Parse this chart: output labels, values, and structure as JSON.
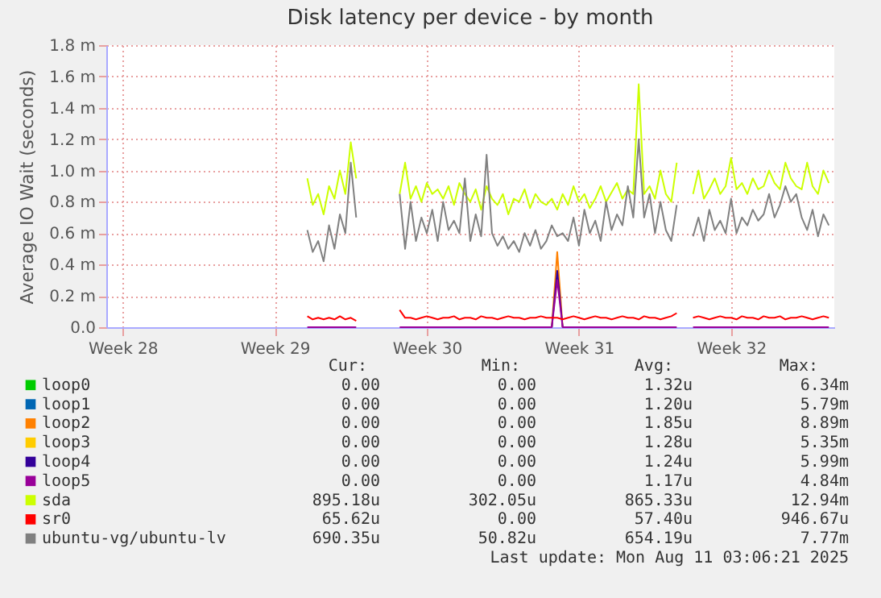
{
  "chart_data": {
    "type": "line",
    "title": "Disk latency per device - by month",
    "ylabel": "Average IO Wait (seconds)",
    "x": [
      "2025-07-17T06:00",
      "2025-07-17T12:00",
      "2025-07-17T18:00",
      "2025-07-18T00:00",
      "2025-07-18T06:00",
      "2025-07-18T12:00",
      "2025-07-18T18:00",
      "2025-07-19T00:00",
      "2025-07-19T06:00",
      "2025-07-19T12:00",
      "2025-07-20T12:00",
      "2025-07-21T12:00",
      "2025-07-21T18:00",
      "2025-07-22T00:00",
      "2025-07-22T06:00",
      "2025-07-22T12:00",
      "2025-07-22T18:00",
      "2025-07-23T00:00",
      "2025-07-23T06:00",
      "2025-07-23T12:00",
      "2025-07-23T18:00",
      "2025-07-24T00:00",
      "2025-07-24T06:00",
      "2025-07-24T12:00",
      "2025-07-24T18:00",
      "2025-07-25T00:00",
      "2025-07-25T06:00",
      "2025-07-25T12:00",
      "2025-07-25T18:00",
      "2025-07-26T00:00",
      "2025-07-26T06:00",
      "2025-07-26T12:00",
      "2025-07-26T18:00",
      "2025-07-27T00:00",
      "2025-07-27T06:00",
      "2025-07-27T12:00",
      "2025-07-27T18:00",
      "2025-07-28T00:00",
      "2025-07-28T06:00",
      "2025-07-28T12:00",
      "2025-07-28T18:00",
      "2025-07-29T00:00",
      "2025-07-29T06:00",
      "2025-07-29T12:00",
      "2025-07-29T18:00",
      "2025-07-30T00:00",
      "2025-07-30T06:00",
      "2025-07-30T12:00",
      "2025-07-30T18:00",
      "2025-07-31T00:00",
      "2025-07-31T06:00",
      "2025-07-31T12:00",
      "2025-07-31T18:00",
      "2025-08-01T00:00",
      "2025-08-01T06:00",
      "2025-08-01T12:00",
      "2025-08-01T18:00",
      "2025-08-02T00:00",
      "2025-08-02T06:00",
      "2025-08-02T12:00",
      "2025-08-02T18:00",
      "2025-08-03T00:00",
      "2025-08-03T06:00",
      "2025-08-03T18:00",
      "2025-08-04T00:00",
      "2025-08-04T06:00",
      "2025-08-04T12:00",
      "2025-08-04T18:00",
      "2025-08-05T00:00",
      "2025-08-05T06:00",
      "2025-08-05T12:00",
      "2025-08-05T18:00",
      "2025-08-06T00:00",
      "2025-08-06T06:00",
      "2025-08-06T12:00",
      "2025-08-06T18:00",
      "2025-08-07T00:00",
      "2025-08-07T06:00",
      "2025-08-07T12:00",
      "2025-08-07T18:00",
      "2025-08-08T00:00",
      "2025-08-08T06:00",
      "2025-08-08T12:00",
      "2025-08-08T18:00",
      "2025-08-09T00:00",
      "2025-08-09T06:00",
      "2025-08-09T12:00",
      "2025-08-09T18:00",
      "2025-08-10T00:00",
      "2025-08-10T06:00"
    ],
    "xlim": [
      "2025-07-08T00:00",
      "2025-08-10T12:00"
    ],
    "xticks": [
      {
        "value": "2025-07-08T18:00",
        "label": "Week 28"
      },
      {
        "value": "2025-07-15T18:00",
        "label": "Week 29"
      },
      {
        "value": "2025-07-22T18:00",
        "label": "Week 30"
      },
      {
        "value": "2025-07-29T18:00",
        "label": "Week 31"
      },
      {
        "value": "2025-08-05T18:00",
        "label": "Week 32"
      }
    ],
    "ylim": [
      0,
      1.8
    ],
    "yticks": [
      {
        "value": 0,
        "label": "0.0"
      },
      {
        "value": 0.2,
        "label": "0.2 m"
      },
      {
        "value": 0.4,
        "label": "0.4 m"
      },
      {
        "value": 0.6,
        "label": "0.6 m"
      },
      {
        "value": 0.8,
        "label": "0.8 m"
      },
      {
        "value": 1.0,
        "label": "1.0 m"
      },
      {
        "value": 1.2,
        "label": "1.2 m"
      },
      {
        "value": 1.4,
        "label": "1.4 m"
      },
      {
        "value": 1.6,
        "label": "1.6 m"
      },
      {
        "value": 1.8,
        "label": "1.8 m"
      }
    ],
    "grid": true,
    "legend": "bottom",
    "series": [
      {
        "name": "loop0",
        "color": "#00cc00",
        "values": [
          null,
          null,
          null,
          null,
          null,
          null,
          null,
          null,
          null,
          null,
          null,
          null,
          null,
          null,
          null,
          null,
          null,
          null,
          null,
          null,
          null,
          null,
          null,
          null,
          null,
          null,
          null,
          null,
          null,
          null,
          null,
          null,
          null,
          null,
          null,
          null,
          null,
          null,
          null,
          null,
          null,
          null,
          null,
          null,
          null,
          null,
          null,
          null,
          null,
          null,
          null,
          null,
          null,
          null,
          null,
          null,
          null,
          null,
          null,
          null,
          null,
          null,
          null,
          null,
          null,
          null,
          null,
          null,
          null,
          null,
          null,
          null,
          null,
          null,
          null,
          null,
          null,
          null,
          null,
          null,
          null,
          null,
          null,
          null,
          null,
          null,
          null,
          null,
          null,
          null
        ]
      },
      {
        "name": "loop1",
        "color": "#0066b3",
        "values": [
          null,
          null,
          null,
          null,
          null,
          null,
          null,
          null,
          null,
          null,
          null,
          null,
          null,
          null,
          null,
          null,
          null,
          null,
          null,
          null,
          null,
          null,
          null,
          null,
          null,
          null,
          null,
          null,
          null,
          null,
          null,
          null,
          null,
          null,
          null,
          null,
          null,
          null,
          null,
          null,
          null,
          null,
          null,
          null,
          null,
          null,
          null,
          null,
          null,
          null,
          null,
          null,
          null,
          null,
          null,
          null,
          null,
          null,
          null,
          null,
          null,
          null,
          null,
          null,
          null,
          null,
          null,
          null,
          null,
          null,
          null,
          null,
          null,
          null,
          null,
          null,
          null,
          null,
          null,
          null,
          null,
          null,
          null,
          null,
          null,
          null,
          null,
          null,
          null,
          null
        ]
      },
      {
        "name": "loop2",
        "color": "#ff8000",
        "values": [
          null,
          null,
          null,
          null,
          null,
          null,
          null,
          null,
          null,
          null,
          null,
          null,
          null,
          null,
          null,
          null,
          null,
          null,
          null,
          null,
          null,
          null,
          null,
          null,
          null,
          null,
          null,
          null,
          null,
          null,
          null,
          null,
          null,
          null,
          null,
          null,
          null,
          null,
          null,
          0,
          0.48,
          0,
          null,
          null,
          null,
          null,
          null,
          null,
          null,
          null,
          null,
          null,
          null,
          null,
          null,
          null,
          null,
          null,
          null,
          null,
          null,
          null,
          null,
          null,
          null,
          null,
          null,
          null,
          null,
          null,
          null,
          null,
          null,
          null,
          null,
          null,
          null,
          null,
          null,
          null,
          null,
          null,
          null,
          null,
          null,
          null,
          null,
          null,
          null,
          null
        ]
      },
      {
        "name": "loop3",
        "color": "#ffcc00",
        "values": [
          null,
          null,
          null,
          null,
          null,
          null,
          null,
          null,
          null,
          null,
          null,
          null,
          null,
          null,
          null,
          null,
          null,
          null,
          null,
          null,
          null,
          null,
          null,
          null,
          null,
          null,
          null,
          null,
          null,
          null,
          null,
          null,
          null,
          null,
          null,
          null,
          null,
          null,
          null,
          null,
          null,
          null,
          null,
          null,
          null,
          null,
          null,
          null,
          null,
          null,
          null,
          null,
          null,
          null,
          null,
          null,
          null,
          null,
          null,
          null,
          null,
          null,
          null,
          null,
          null,
          null,
          null,
          null,
          null,
          null,
          null,
          null,
          null,
          null,
          null,
          null,
          null,
          null,
          null,
          null,
          null,
          null,
          null,
          null,
          null,
          null,
          null,
          null,
          null,
          null
        ]
      },
      {
        "name": "loop4",
        "color": "#330099",
        "values": [
          null,
          null,
          null,
          null,
          null,
          null,
          null,
          null,
          null,
          null,
          null,
          null,
          null,
          null,
          null,
          null,
          null,
          null,
          null,
          null,
          null,
          null,
          null,
          null,
          null,
          null,
          null,
          null,
          null,
          null,
          null,
          null,
          null,
          null,
          null,
          null,
          null,
          null,
          null,
          0,
          0.36,
          0,
          null,
          null,
          null,
          null,
          null,
          null,
          null,
          null,
          null,
          null,
          null,
          null,
          null,
          null,
          null,
          null,
          null,
          null,
          null,
          null,
          null,
          null,
          null,
          null,
          null,
          null,
          null,
          null,
          null,
          null,
          null,
          null,
          null,
          null,
          null,
          null,
          null,
          null,
          null,
          null,
          null,
          null,
          null,
          null,
          null,
          null,
          null,
          null
        ]
      },
      {
        "name": "loop5",
        "color": "#990099",
        "values": [
          0,
          0,
          0,
          0,
          0,
          0,
          0,
          0,
          0,
          0,
          null,
          0,
          0,
          0,
          0,
          0,
          0,
          0,
          0,
          0,
          0,
          0,
          0,
          0,
          0,
          0,
          0,
          0,
          0,
          0,
          0,
          0,
          0,
          0,
          0,
          0,
          0,
          0,
          0,
          0,
          0.3,
          0,
          0,
          0,
          0,
          0,
          0,
          0,
          0,
          0,
          0,
          0,
          0,
          0,
          0,
          0,
          0,
          0,
          0,
          0,
          0,
          0,
          0,
          null,
          0,
          0,
          0,
          0,
          0,
          0,
          0,
          0,
          0,
          0,
          0,
          0,
          0,
          0,
          0,
          0,
          0,
          0,
          0,
          0,
          0,
          0,
          0,
          0,
          0,
          0
        ]
      },
      {
        "name": "sda",
        "color": "#ccff00",
        "values": [
          0.95,
          0.78,
          0.85,
          0.72,
          0.9,
          0.82,
          1.0,
          0.85,
          1.18,
          0.95,
          null,
          0.85,
          1.05,
          0.82,
          0.9,
          0.8,
          0.92,
          0.85,
          0.88,
          0.82,
          0.9,
          0.78,
          0.92,
          0.85,
          0.8,
          0.88,
          0.75,
          0.9,
          0.82,
          0.78,
          0.85,
          0.72,
          0.82,
          0.8,
          0.88,
          0.76,
          0.85,
          0.8,
          0.78,
          0.82,
          0.75,
          0.85,
          0.78,
          0.9,
          0.8,
          0.85,
          0.76,
          0.82,
          0.9,
          0.8,
          0.86,
          0.92,
          0.82,
          0.88,
          0.85,
          1.55,
          0.85,
          0.9,
          0.82,
          1.0,
          0.85,
          0.8,
          1.05,
          null,
          0.85,
          1.0,
          0.82,
          0.88,
          0.95,
          0.85,
          0.9,
          1.08,
          0.88,
          0.92,
          0.85,
          0.95,
          0.88,
          0.9,
          1.0,
          0.92,
          0.88,
          1.05,
          0.95,
          0.9,
          0.88,
          1.05,
          0.9,
          0.85,
          1.0,
          0.92
        ]
      },
      {
        "name": "sr0",
        "color": "#ff0000",
        "values": [
          0.07,
          0.05,
          0.06,
          0.05,
          0.06,
          0.05,
          0.07,
          0.05,
          0.06,
          0.04,
          null,
          0.11,
          0.06,
          0.06,
          0.05,
          0.06,
          0.07,
          0.06,
          0.05,
          0.06,
          0.06,
          0.07,
          0.05,
          0.06,
          0.06,
          0.05,
          0.07,
          0.06,
          0.06,
          0.05,
          0.06,
          0.07,
          0.06,
          0.06,
          0.05,
          0.06,
          0.06,
          0.07,
          0.06,
          0.06,
          0.06,
          0.05,
          0.06,
          0.07,
          0.06,
          0.05,
          0.06,
          0.07,
          0.06,
          0.06,
          0.05,
          0.06,
          0.07,
          0.06,
          0.06,
          0.05,
          0.07,
          0.06,
          0.06,
          0.05,
          0.06,
          0.07,
          0.09,
          null,
          0.06,
          0.07,
          0.06,
          0.05,
          0.06,
          0.07,
          0.06,
          0.06,
          0.05,
          0.07,
          0.06,
          0.06,
          0.05,
          0.07,
          0.06,
          0.06,
          0.07,
          0.05,
          0.06,
          0.06,
          0.07,
          0.06,
          0.05,
          0.06,
          0.07,
          0.06
        ]
      },
      {
        "name": "ubuntu-vg/ubuntu-lv",
        "color": "#808080",
        "values": [
          0.62,
          0.48,
          0.55,
          0.42,
          0.65,
          0.5,
          0.72,
          0.6,
          1.05,
          0.7,
          null,
          0.85,
          0.5,
          0.8,
          0.55,
          0.7,
          0.6,
          0.75,
          0.55,
          0.8,
          0.62,
          0.68,
          0.6,
          0.95,
          0.55,
          0.72,
          0.58,
          1.1,
          0.6,
          0.52,
          0.58,
          0.5,
          0.55,
          0.48,
          0.6,
          0.52,
          0.62,
          0.5,
          0.55,
          0.65,
          0.58,
          0.6,
          0.55,
          0.7,
          0.52,
          0.75,
          0.6,
          0.68,
          0.55,
          0.8,
          0.62,
          0.72,
          0.65,
          0.9,
          0.7,
          1.2,
          0.7,
          0.85,
          0.6,
          0.8,
          0.62,
          0.55,
          0.78,
          null,
          0.58,
          0.7,
          0.55,
          0.75,
          0.62,
          0.68,
          0.6,
          0.82,
          0.6,
          0.7,
          0.65,
          0.75,
          0.68,
          0.72,
          0.85,
          0.7,
          0.78,
          0.9,
          0.8,
          0.85,
          0.7,
          0.62,
          0.75,
          0.58,
          0.72,
          0.65
        ]
      }
    ],
    "annotations": [
      "Cur:",
      "Min:",
      "Avg:",
      "Max:",
      "0.00",
      "0.00",
      "1.32u",
      "6.34m",
      "0.00",
      "0.00",
      "1.20u",
      "5.79m",
      "0.00",
      "0.00",
      "1.85u",
      "8.89m",
      "0.00",
      "0.00",
      "1.28u",
      "5.35m",
      "0.00",
      "0.00",
      "1.24u",
      "5.99m",
      "0.00",
      "0.00",
      "1.17u",
      "4.84m",
      "895.18u",
      "302.05u",
      "865.33u",
      "12.94m",
      "65.62u",
      "0.00",
      "57.40u",
      "946.67u",
      "690.35u",
      "50.82u",
      "654.19u",
      "7.77m",
      "Last update: Mon Aug 11 03:06:21 2025"
    ]
  }
}
